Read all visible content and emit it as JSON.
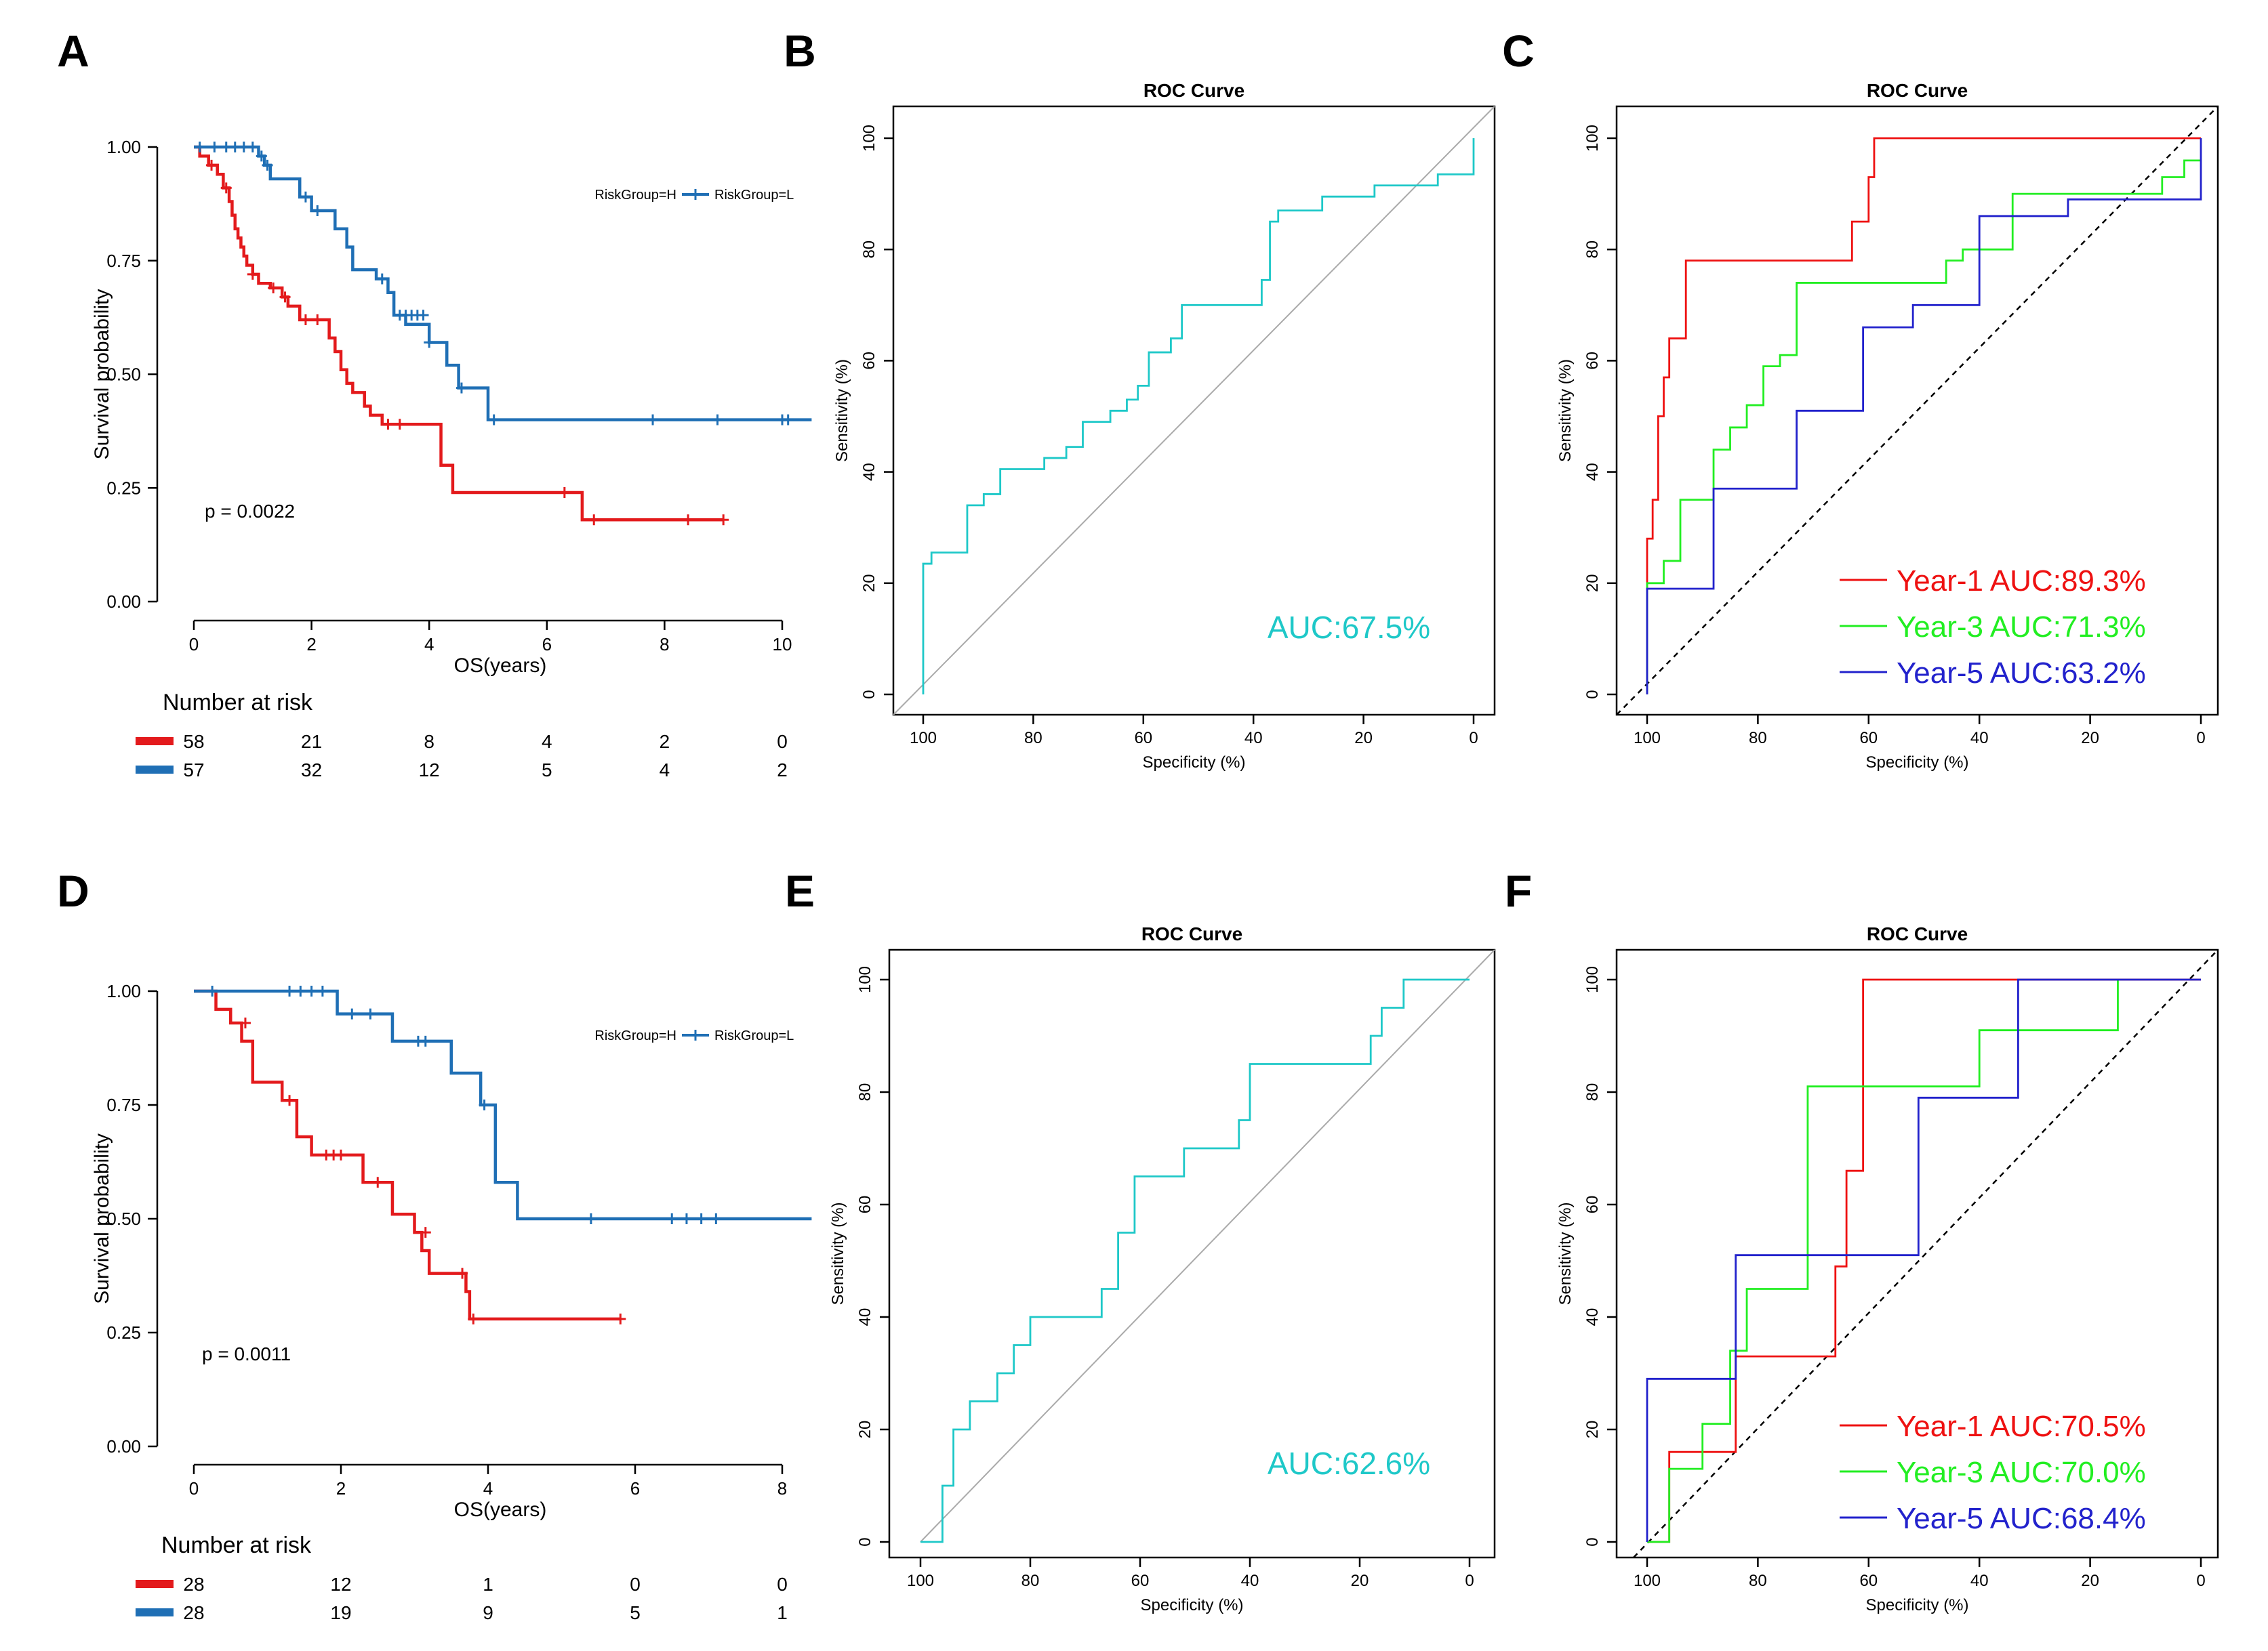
{
  "panel_letters": [
    "A",
    "B",
    "C",
    "D",
    "E",
    "F"
  ],
  "colors": {
    "high_risk": "#e31a1c",
    "low_risk": "#1f6fb5",
    "roc_single": "#1ec8c8",
    "year1": "#ee1111",
    "year3": "#22ee22",
    "year5": "#2222cc",
    "diagonal": "#aaaaaa",
    "axis": "#000000"
  },
  "chart_data": [
    {
      "panel": "A",
      "type": "line",
      "subtype": "kaplan-meier",
      "xlabel": "OS(years)",
      "ylabel": "Survival probability",
      "xlim": [
        0,
        10.5
      ],
      "ylim": [
        0,
        1
      ],
      "xticks": [
        "0",
        "2",
        "4",
        "6",
        "8",
        "10"
      ],
      "yticks": [
        "0.00",
        "0.25",
        "0.50",
        "0.75",
        "1.00"
      ],
      "legend": [
        "RiskGroup=H",
        "RiskGroup=L"
      ],
      "legend_position": "top-right",
      "pvalue": "p = 0.0022",
      "risk_table_title": "Number at risk",
      "risk_table": [
        [
          "58",
          "21",
          "8",
          "4",
          "2",
          "0"
        ],
        [
          "57",
          "32",
          "12",
          "5",
          "4",
          "2"
        ]
      ],
      "series": [
        {
          "name": "RiskGroup=H",
          "x": [
            0,
            0.1,
            0.25,
            0.4,
            0.5,
            0.6,
            0.65,
            0.7,
            0.75,
            0.8,
            0.85,
            0.9,
            1.0,
            1.1,
            1.3,
            1.5,
            1.6,
            1.8,
            2.3,
            2.4,
            2.5,
            2.6,
            2.7,
            2.9,
            3.0,
            3.2,
            4.2,
            4.4,
            6.6,
            9.0
          ],
          "y": [
            1.0,
            0.98,
            0.96,
            0.94,
            0.91,
            0.88,
            0.85,
            0.82,
            0.8,
            0.78,
            0.76,
            0.74,
            0.72,
            0.7,
            0.69,
            0.67,
            0.65,
            0.62,
            0.58,
            0.55,
            0.51,
            0.48,
            0.46,
            0.43,
            0.41,
            0.39,
            0.3,
            0.24,
            0.18,
            0.18
          ],
          "censor_x": [
            0.3,
            0.55,
            1.0,
            1.35,
            1.55,
            1.9,
            2.1,
            3.3,
            3.5,
            6.3,
            6.8,
            8.4,
            9.0
          ],
          "censor_y": [
            0.96,
            0.91,
            0.72,
            0.69,
            0.67,
            0.62,
            0.62,
            0.39,
            0.39,
            0.24,
            0.18,
            0.18,
            0.18
          ]
        },
        {
          "name": "RiskGroup=L",
          "x": [
            0,
            1.1,
            1.2,
            1.3,
            1.4,
            1.8,
            2.0,
            2.4,
            2.6,
            2.7,
            3.1,
            3.3,
            3.4,
            3.6,
            4.0,
            4.3,
            4.5,
            5.0,
            10.5
          ],
          "y": [
            1.0,
            0.98,
            0.96,
            0.93,
            0.93,
            0.89,
            0.86,
            0.82,
            0.78,
            0.73,
            0.71,
            0.68,
            0.63,
            0.61,
            0.57,
            0.52,
            0.47,
            0.4,
            0.4
          ],
          "censor_x": [
            0.1,
            0.35,
            0.55,
            0.7,
            0.85,
            1.0,
            1.15,
            1.25,
            1.9,
            2.1,
            3.2,
            3.5,
            3.6,
            3.7,
            3.8,
            3.9,
            4.0,
            4.55,
            5.1,
            7.8,
            8.9,
            10.0,
            10.1
          ],
          "censor_y": [
            1.0,
            1.0,
            1.0,
            1.0,
            1.0,
            1.0,
            0.98,
            0.96,
            0.89,
            0.86,
            0.71,
            0.63,
            0.63,
            0.63,
            0.63,
            0.63,
            0.57,
            0.47,
            0.4,
            0.4,
            0.4,
            0.4,
            0.4
          ]
        }
      ]
    },
    {
      "panel": "B",
      "type": "line",
      "subtype": "roc",
      "title": "ROC Curve",
      "xlabel": "Specificity (%)",
      "ylabel": "Sensitivity (%)",
      "xlim": [
        100,
        0
      ],
      "ylim": [
        0,
        100
      ],
      "xticks": [
        "100",
        "80",
        "60",
        "40",
        "20",
        "0"
      ],
      "yticks": [
        "0",
        "20",
        "40",
        "60",
        "80",
        "100"
      ],
      "annotation": "AUC:67.5%",
      "series": [
        {
          "name": "",
          "color_key": "roc_single",
          "specificity": [
            100,
            100,
            98.5,
            98.5,
            92,
            92,
            89,
            89,
            86,
            86,
            78,
            78,
            74,
            74,
            71,
            71,
            66,
            66,
            63,
            63,
            61,
            61,
            59,
            59,
            55,
            55,
            53,
            53,
            38.5,
            38.5,
            37,
            37,
            35.5,
            35.5,
            27.5,
            27.5,
            18,
            18,
            6.5,
            6.5,
            0,
            0
          ],
          "sensitivity": [
            0,
            23.5,
            23.5,
            25.5,
            25.5,
            34,
            34,
            36,
            36,
            40.5,
            40.5,
            42.5,
            42.5,
            44.5,
            44.5,
            49,
            49,
            51,
            51,
            53,
            53,
            55.5,
            55.5,
            61.5,
            61.5,
            64,
            64,
            70,
            70,
            74.5,
            74.5,
            85,
            85,
            87,
            87,
            89.5,
            89.5,
            91.5,
            91.5,
            93.5,
            93.5,
            100
          ]
        }
      ]
    },
    {
      "panel": "C",
      "type": "line",
      "subtype": "roc",
      "title": "ROC Curve",
      "xlabel": "Specificity (%)",
      "ylabel": "Sensitivity (%)",
      "xlim": [
        100,
        0
      ],
      "ylim": [
        0,
        100
      ],
      "xticks": [
        "100",
        "80",
        "60",
        "40",
        "20",
        "0"
      ],
      "yticks": [
        "0",
        "20",
        "40",
        "60",
        "80",
        "100"
      ],
      "series": [
        {
          "name": "Year-1 AUC:89.3%",
          "color_key": "year1",
          "specificity": [
            100,
            100,
            99,
            99,
            98,
            98,
            97,
            97,
            96,
            96,
            95,
            95,
            93,
            93,
            91,
            91,
            63,
            63,
            60,
            60,
            59,
            59,
            0
          ],
          "sensitivity": [
            0,
            28,
            28,
            35,
            35,
            50,
            50,
            57,
            57,
            64,
            64,
            64,
            64,
            78,
            78,
            78,
            78,
            85,
            85,
            93,
            93,
            100,
            100
          ]
        },
        {
          "name": "Year-3 AUC:71.3%",
          "color_key": "year3",
          "specificity": [
            100,
            100,
            97,
            97,
            94,
            94,
            88,
            88,
            85,
            85,
            82,
            82,
            79,
            79,
            76,
            76,
            73,
            73,
            70,
            70,
            46,
            46,
            43,
            43,
            34,
            34,
            7,
            7,
            3,
            3,
            0,
            0
          ],
          "sensitivity": [
            0,
            20,
            20,
            24,
            24,
            35,
            35,
            44,
            44,
            48,
            48,
            52,
            52,
            59,
            59,
            61,
            61,
            74,
            74,
            74,
            74,
            78,
            78,
            80,
            80,
            90,
            90,
            93,
            93,
            96,
            96,
            96
          ]
        },
        {
          "name": "Year-5 AUC:63.2%",
          "color_key": "year5",
          "specificity": [
            100,
            100,
            88,
            88,
            73,
            73,
            61,
            61,
            52,
            52,
            40,
            40,
            36,
            36,
            24,
            24,
            12,
            12,
            0,
            0
          ],
          "sensitivity": [
            0,
            19,
            19,
            37,
            37,
            51,
            51,
            66,
            66,
            70,
            70,
            86,
            86,
            86,
            86,
            89,
            89,
            89,
            89,
            100
          ]
        }
      ]
    },
    {
      "panel": "D",
      "type": "line",
      "subtype": "kaplan-meier",
      "xlabel": "OS(years)",
      "ylabel": "Survival probability",
      "xlim": [
        0,
        8.4
      ],
      "ylim": [
        0,
        1
      ],
      "xticks": [
        "0",
        "2",
        "4",
        "6",
        "8"
      ],
      "yticks": [
        "0.00",
        "0.25",
        "0.50",
        "0.75",
        "1.00"
      ],
      "legend": [
        "RiskGroup=H",
        "RiskGroup=L"
      ],
      "legend_position": "top-right",
      "pvalue": "p = 0.0011",
      "risk_table_title": "Number at risk",
      "risk_table": [
        [
          "28",
          "12",
          "1",
          "0",
          "0"
        ],
        [
          "28",
          "19",
          "9",
          "5",
          "1"
        ]
      ],
      "series": [
        {
          "name": "RiskGroup=H",
          "x": [
            0,
            0.3,
            0.5,
            0.65,
            0.8,
            1.2,
            1.4,
            1.6,
            2.3,
            2.7,
            3.0,
            3.1,
            3.2,
            3.7,
            3.75,
            5.8
          ],
          "y": [
            1.0,
            0.96,
            0.93,
            0.89,
            0.8,
            0.76,
            0.68,
            0.64,
            0.58,
            0.51,
            0.47,
            0.43,
            0.38,
            0.34,
            0.28,
            0.28
          ],
          "censor_x": [
            0.7,
            1.3,
            1.8,
            1.9,
            2.0,
            2.5,
            3.15,
            3.65,
            3.8,
            5.8
          ],
          "censor_y": [
            0.93,
            0.76,
            0.64,
            0.64,
            0.64,
            0.58,
            0.47,
            0.38,
            0.28,
            0.28
          ]
        },
        {
          "name": "RiskGroup=L",
          "x": [
            0,
            1.95,
            2.7,
            3.5,
            3.9,
            4.1,
            4.4,
            8.4
          ],
          "y": [
            1.0,
            0.95,
            0.89,
            0.82,
            0.75,
            0.58,
            0.5,
            0.5
          ],
          "censor_x": [
            0.25,
            1.3,
            1.45,
            1.6,
            1.75,
            2.15,
            2.4,
            3.05,
            3.15,
            3.95,
            5.4,
            6.5,
            6.7,
            6.9,
            7.1
          ],
          "censor_y": [
            1.0,
            1.0,
            1.0,
            1.0,
            1.0,
            0.95,
            0.95,
            0.89,
            0.89,
            0.75,
            0.5,
            0.5,
            0.5,
            0.5,
            0.5
          ]
        }
      ]
    },
    {
      "panel": "E",
      "type": "line",
      "subtype": "roc",
      "title": "ROC Curve",
      "xlabel": "Specificity (%)",
      "ylabel": "Sensitivity (%)",
      "xlim": [
        100,
        0
      ],
      "ylim": [
        0,
        100
      ],
      "xticks": [
        "100",
        "80",
        "60",
        "40",
        "20",
        "0"
      ],
      "yticks": [
        "0",
        "20",
        "40",
        "60",
        "80",
        "100"
      ],
      "annotation": "AUC:62.6%",
      "series": [
        {
          "name": "",
          "color_key": "roc_single",
          "specificity": [
            100,
            96,
            96,
            94,
            94,
            91,
            91,
            86,
            86,
            83,
            83,
            80,
            80,
            67,
            67,
            64,
            64,
            61,
            61,
            52,
            52,
            42,
            42,
            40,
            40,
            18,
            18,
            16,
            16,
            12,
            12,
            0
          ],
          "sensitivity": [
            0,
            0,
            10,
            10,
            20,
            20,
            25,
            25,
            30,
            30,
            35,
            35,
            40,
            40,
            45,
            45,
            55,
            55,
            65,
            65,
            70,
            70,
            75,
            75,
            85,
            85,
            90,
            90,
            95,
            95,
            100,
            100
          ]
        }
      ]
    },
    {
      "panel": "F",
      "type": "line",
      "subtype": "roc",
      "title": "ROC Curve",
      "xlabel": "Specificity (%)",
      "ylabel": "Sensitivity (%)",
      "xlim": [
        100,
        0
      ],
      "ylim": [
        0,
        100
      ],
      "xticks": [
        "100",
        "80",
        "60",
        "40",
        "20",
        "0"
      ],
      "yticks": [
        "0",
        "20",
        "40",
        "60",
        "80",
        "100"
      ],
      "series": [
        {
          "name": "Year-1 AUC:70.5%",
          "color_key": "year1",
          "specificity": [
            100,
            96,
            96,
            84,
            84,
            66,
            66,
            64,
            64,
            61,
            61,
            0
          ],
          "sensitivity": [
            0,
            0,
            16,
            16,
            33,
            33,
            49,
            49,
            66,
            66,
            100,
            100
          ]
        },
        {
          "name": "Year-3 AUC:70.0%",
          "color_key": "year3",
          "specificity": [
            100,
            96,
            96,
            90,
            90,
            85,
            85,
            82,
            82,
            71,
            71,
            40,
            40,
            15,
            15
          ],
          "sensitivity": [
            0,
            0,
            13,
            13,
            21,
            21,
            34,
            34,
            45,
            45,
            81,
            81,
            91,
            91,
            100
          ]
        },
        {
          "name": "Year-5 AUC:68.4%",
          "color_key": "year5",
          "specificity": [
            100,
            100,
            84,
            84,
            51,
            51,
            33,
            33,
            0
          ],
          "sensitivity": [
            0,
            29,
            29,
            51,
            51,
            79,
            79,
            100,
            100
          ]
        }
      ]
    }
  ]
}
